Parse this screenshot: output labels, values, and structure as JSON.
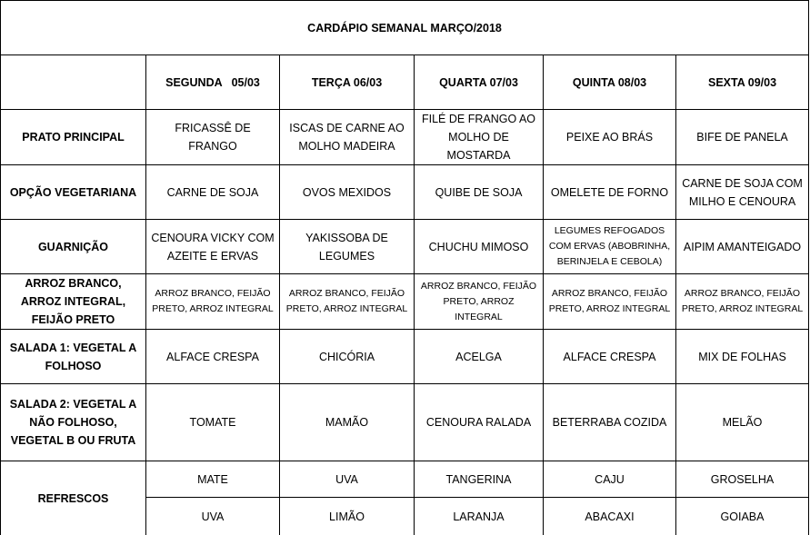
{
  "table": {
    "title": "CARDÁPIO SEMANAL MARÇO/2018",
    "days": [
      "SEGUNDA   05/03",
      "TERÇA 06/03",
      "QUARTA 07/03",
      "QUINTA 08/03",
      "SEXTA 09/03"
    ],
    "rows": [
      {
        "label": "PRATO PRINCIPAL",
        "cells": [
          "FRICASSÊ DE FRANGO",
          "ISCAS DE CARNE AO MOLHO MADEIRA",
          "FILÉ DE FRANGO AO MOLHO DE MOSTARDA",
          "PEIXE AO BRÁS",
          "BIFE DE PANELA"
        ]
      },
      {
        "label": "OPÇÃO VEGETARIANA",
        "cells": [
          "CARNE DE SOJA",
          "OVOS MEXIDOS",
          "QUIBE DE SOJA",
          "OMELETE DE FORNO",
          "CARNE DE SOJA COM MILHO E  CENOURA"
        ]
      },
      {
        "label": "GUARNIÇÃO",
        "cells": [
          "CENOURA VICKY COM AZEITE E ERVAS",
          "YAKISSOBA DE LEGUMES",
          "CHUCHU MIMOSO",
          "LEGUMES REFOGADOS COM ERVAS (ABOBRINHA, BERINJELA E CEBOLA)",
          "AIPIM AMANTEIGADO"
        ]
      },
      {
        "label": "ARROZ BRANCO, ARROZ INTEGRAL, FEIJÃO PRETO",
        "cells": [
          "ARROZ BRANCO, FEIJÃO PRETO, ARROZ INTEGRAL",
          "ARROZ BRANCO, FEIJÃO PRETO, ARROZ INTEGRAL",
          "ARROZ BRANCO, FEIJÃO PRETO, ARROZ INTEGRAL",
          "ARROZ BRANCO, FEIJÃO PRETO, ARROZ INTEGRAL",
          "ARROZ BRANCO, FEIJÃO PRETO, ARROZ INTEGRAL"
        ]
      },
      {
        "label": "SALADA 1: VEGETAL A FOLHOSO",
        "cells": [
          "ALFACE CRESPA",
          "CHICÓRIA",
          "ACELGA",
          "ALFACE CRESPA",
          "MIX DE FOLHAS"
        ]
      },
      {
        "label": "SALADA 2: VEGETAL A NÃO FOLHOSO, VEGETAL B OU FRUTA",
        "cells": [
          "TOMATE",
          "MAMÃO",
          "CENOURA RALADA",
          "BETERRABA COZIDA",
          "MELÃO"
        ]
      }
    ],
    "refrescos": {
      "label": "REFRESCOS",
      "options": [
        [
          "MATE",
          "UVA",
          "TANGERINA",
          "CAJU",
          "GROSELHA"
        ],
        [
          "UVA",
          "LIMÃO",
          "LARANJA",
          "ABACAXI",
          "GOIABA"
        ]
      ]
    }
  }
}
